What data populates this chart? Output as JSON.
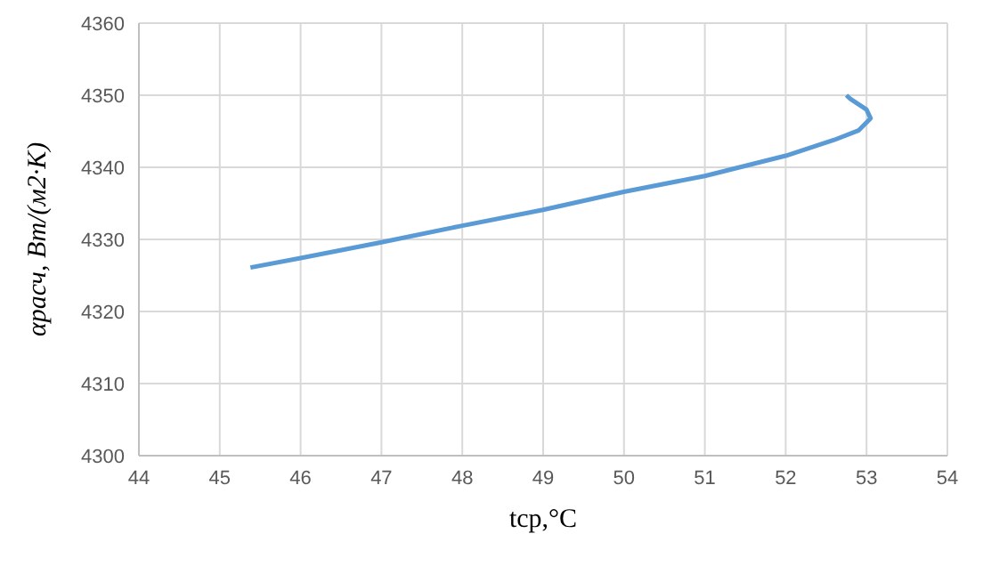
{
  "chart_data": {
    "type": "line",
    "xlabel": "tср,°C",
    "ylabel": "αрасч, Вт/(м2·К)",
    "xlim": [
      44,
      54
    ],
    "xticks": [
      44,
      45,
      46,
      47,
      48,
      49,
      50,
      51,
      52,
      53,
      54
    ],
    "ylim": [
      4300,
      4360
    ],
    "yticks": [
      4300,
      4310,
      4320,
      4330,
      4340,
      4350,
      4360
    ],
    "grid": true,
    "marker": "none",
    "line_style": "solid",
    "series": [
      {
        "color": "#5b9bd5",
        "x": [
          45.38,
          46,
          47,
          48,
          49,
          50,
          51,
          52,
          52.6,
          52.9,
          53.05,
          53,
          52.8,
          52.75
        ],
        "values": [
          4326.1,
          4327.4,
          4329.6,
          4331.9,
          4334.1,
          4336.6,
          4338.8,
          4341.6,
          4343.8,
          4345.1,
          4346.8,
          4348,
          4349.5,
          4350
        ]
      }
    ]
  }
}
